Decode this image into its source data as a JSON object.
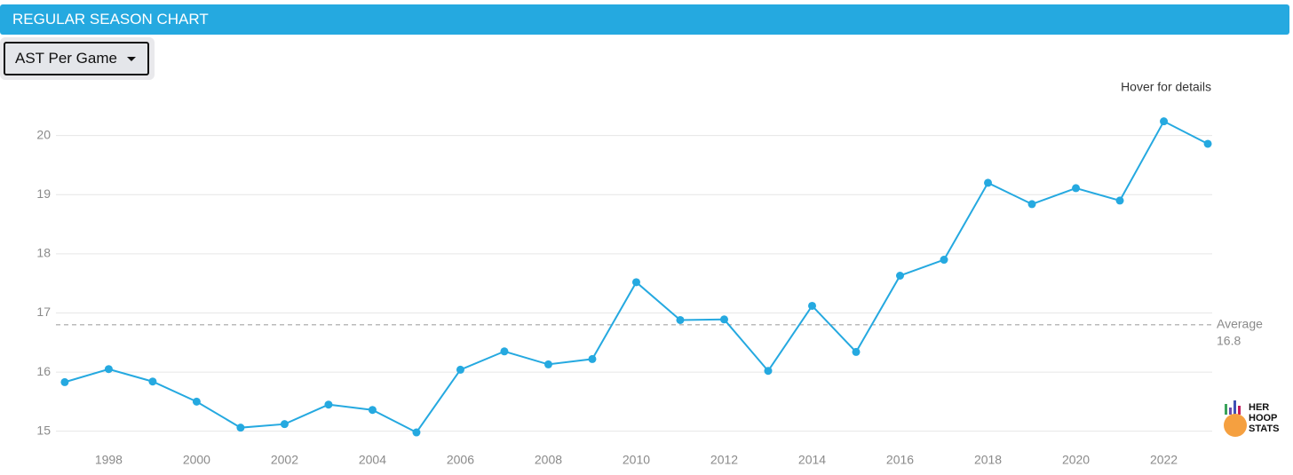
{
  "header": {
    "title": "REGULAR SEASON CHART"
  },
  "dropdown": {
    "selected": "AST Per Game"
  },
  "hint": "Hover for details",
  "logo": [
    "HER",
    "HOOP",
    "STATS"
  ],
  "chart_data": {
    "type": "line",
    "x": [
      1997,
      1998,
      1999,
      2000,
      2001,
      2002,
      2003,
      2004,
      2005,
      2006,
      2007,
      2008,
      2009,
      2010,
      2011,
      2012,
      2013,
      2014,
      2015,
      2016,
      2017,
      2018,
      2019,
      2020,
      2021,
      2022,
      2023
    ],
    "series": [
      {
        "color": "#25a9e0",
        "values": [
          15.83,
          16.05,
          15.84,
          15.5,
          15.06,
          15.12,
          15.45,
          15.36,
          14.98,
          16.04,
          16.35,
          16.13,
          16.22,
          17.52,
          16.88,
          16.89,
          16.02,
          17.12,
          16.34,
          17.63,
          17.9,
          19.2,
          18.84,
          19.11,
          18.9,
          20.24,
          19.86
        ]
      }
    ],
    "xlim": [
      1996.8,
      2023.1
    ],
    "xticks": [
      1998,
      2000,
      2002,
      2004,
      2006,
      2008,
      2010,
      2012,
      2014,
      2016,
      2018,
      2020,
      2022
    ],
    "ylim": [
      14.8,
      20.4
    ],
    "yticks": [
      15,
      16,
      17,
      18,
      19,
      20
    ],
    "grid": true,
    "average": {
      "label": "Average",
      "value": 16.8
    }
  }
}
